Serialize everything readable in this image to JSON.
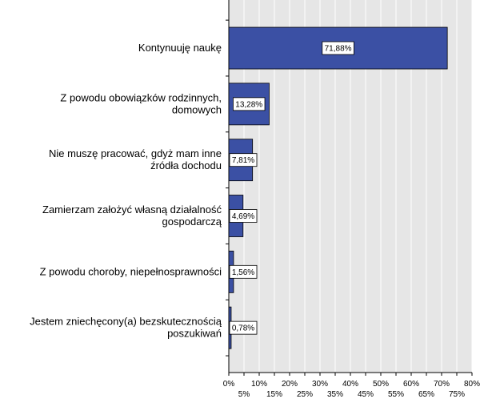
{
  "chart_data": {
    "type": "bar",
    "orientation": "horizontal",
    "categories": [
      [
        "Kontynuuję naukę"
      ],
      [
        "Z powodu obowiązków rodzinnych,",
        "domowych"
      ],
      [
        "Nie muszę pracować, gdyż mam inne",
        "źródła dochodu"
      ],
      [
        "Zamierzam założyć własną działalność",
        "gospodarczą"
      ],
      [
        "Z powodu choroby, niepełnosprawności"
      ],
      [
        "Jestem zniechęcony(a) bezskutecznością",
        "poszukiwań"
      ]
    ],
    "values": [
      71.88,
      13.28,
      7.81,
      4.69,
      1.56,
      0.78
    ],
    "data_labels": [
      "71,88%",
      "13,28%",
      "7,81%",
      "4,69%",
      "1,56%",
      "0,78%"
    ],
    "xlim": [
      0,
      80
    ],
    "x_ticks": [
      0,
      5,
      10,
      15,
      20,
      25,
      30,
      35,
      40,
      45,
      50,
      55,
      60,
      65,
      70,
      75,
      80
    ],
    "x_tick_labels": [
      "0%",
      "5%",
      "10%",
      "15%",
      "20%",
      "25%",
      "30%",
      "35%",
      "40%",
      "45%",
      "50%",
      "55%",
      "60%",
      "65%",
      "70%",
      "75%",
      "80%"
    ],
    "grid": true,
    "legend": "none",
    "title": "",
    "xlabel": "",
    "ylabel": "",
    "colors": {
      "bar_fill": "#3b50a4",
      "bar_stroke": "#000000",
      "plot_background": "#e6e6e6",
      "grid": "#ffffff",
      "label_box": "#ffffff"
    }
  }
}
